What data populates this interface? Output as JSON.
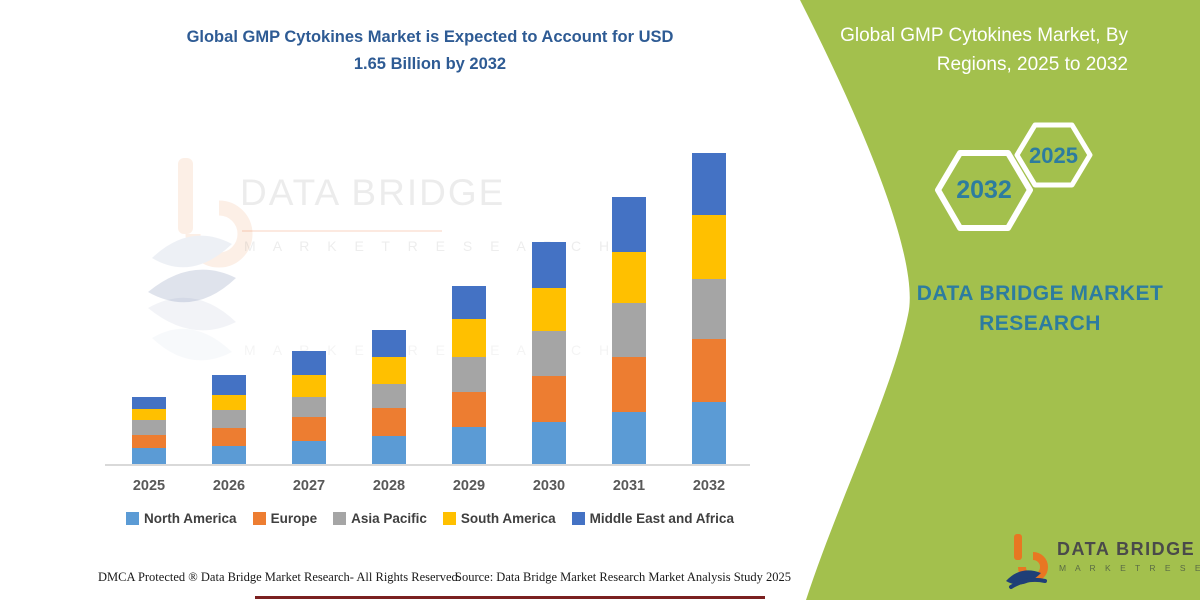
{
  "header": {
    "title_lines": [
      "Global GMP Cytokines Market is Expected to Account for USD",
      "1.65 Billion by 2032"
    ],
    "title_color": "#2e5b94"
  },
  "sidebar": {
    "bg_color": "#a3c04d",
    "title_lines": [
      "Global GMP Cytokines Market, By",
      "Regions, 2025 to 2032"
    ],
    "hexagons": [
      {
        "label": "2032"
      },
      {
        "label": "2025"
      }
    ],
    "brand_lines": [
      "DATA BRIDGE MARKET",
      "RESEARCH"
    ],
    "accent_text_color": "#2d7c9f"
  },
  "watermark": {
    "brand": "DATA BRIDGE",
    "sub": "M A R K E T   R E S E A R C H",
    "sub2": "M A R K E T   R E S E A R C H"
  },
  "chart_data": {
    "type": "bar",
    "stacked": true,
    "title": "Global GMP Cytokines Market is Expected to Account for USD 1.65 Billion by 2032",
    "unit": "USD Billion",
    "categories": [
      "2025",
      "2026",
      "2027",
      "2028",
      "2029",
      "2030",
      "2031",
      "2032"
    ],
    "series": [
      {
        "name": "North America",
        "color": "#5b9bd5",
        "values": [
          0.085,
          0.094,
          0.12,
          0.15,
          0.198,
          0.224,
          0.274,
          0.327
        ]
      },
      {
        "name": "Europe",
        "color": "#ed7d31",
        "values": [
          0.071,
          0.097,
          0.127,
          0.147,
          0.182,
          0.244,
          0.292,
          0.336
        ]
      },
      {
        "name": "Asia Pacific",
        "color": "#a5a5a5",
        "values": [
          0.08,
          0.097,
          0.111,
          0.127,
          0.186,
          0.239,
          0.288,
          0.318
        ]
      },
      {
        "name": "South America",
        "color": "#ffc000",
        "values": [
          0.058,
          0.08,
          0.115,
          0.142,
          0.203,
          0.225,
          0.269,
          0.34
        ]
      },
      {
        "name": "Middle East and Africa",
        "color": "#4472c4",
        "values": [
          0.06,
          0.106,
          0.124,
          0.145,
          0.177,
          0.244,
          0.292,
          0.329
        ]
      }
    ],
    "totals": [
      0.354,
      0.474,
      0.597,
      0.711,
      0.946,
      1.176,
      1.415,
      1.65
    ],
    "ylim": [
      0,
      1.7
    ],
    "axes_visible": false,
    "gridlines": false,
    "legend_position": "bottom"
  },
  "footer": {
    "dmca": "DMCA Protected ® Data Bridge Market Research-  All Rights Reserved.",
    "source": "Source: Data Bridge Market Research  Market Analysis Study 2025"
  },
  "logo": {
    "brand": "DATA BRIDGE",
    "sub": "M A R K E T   R E S E A R C H"
  }
}
